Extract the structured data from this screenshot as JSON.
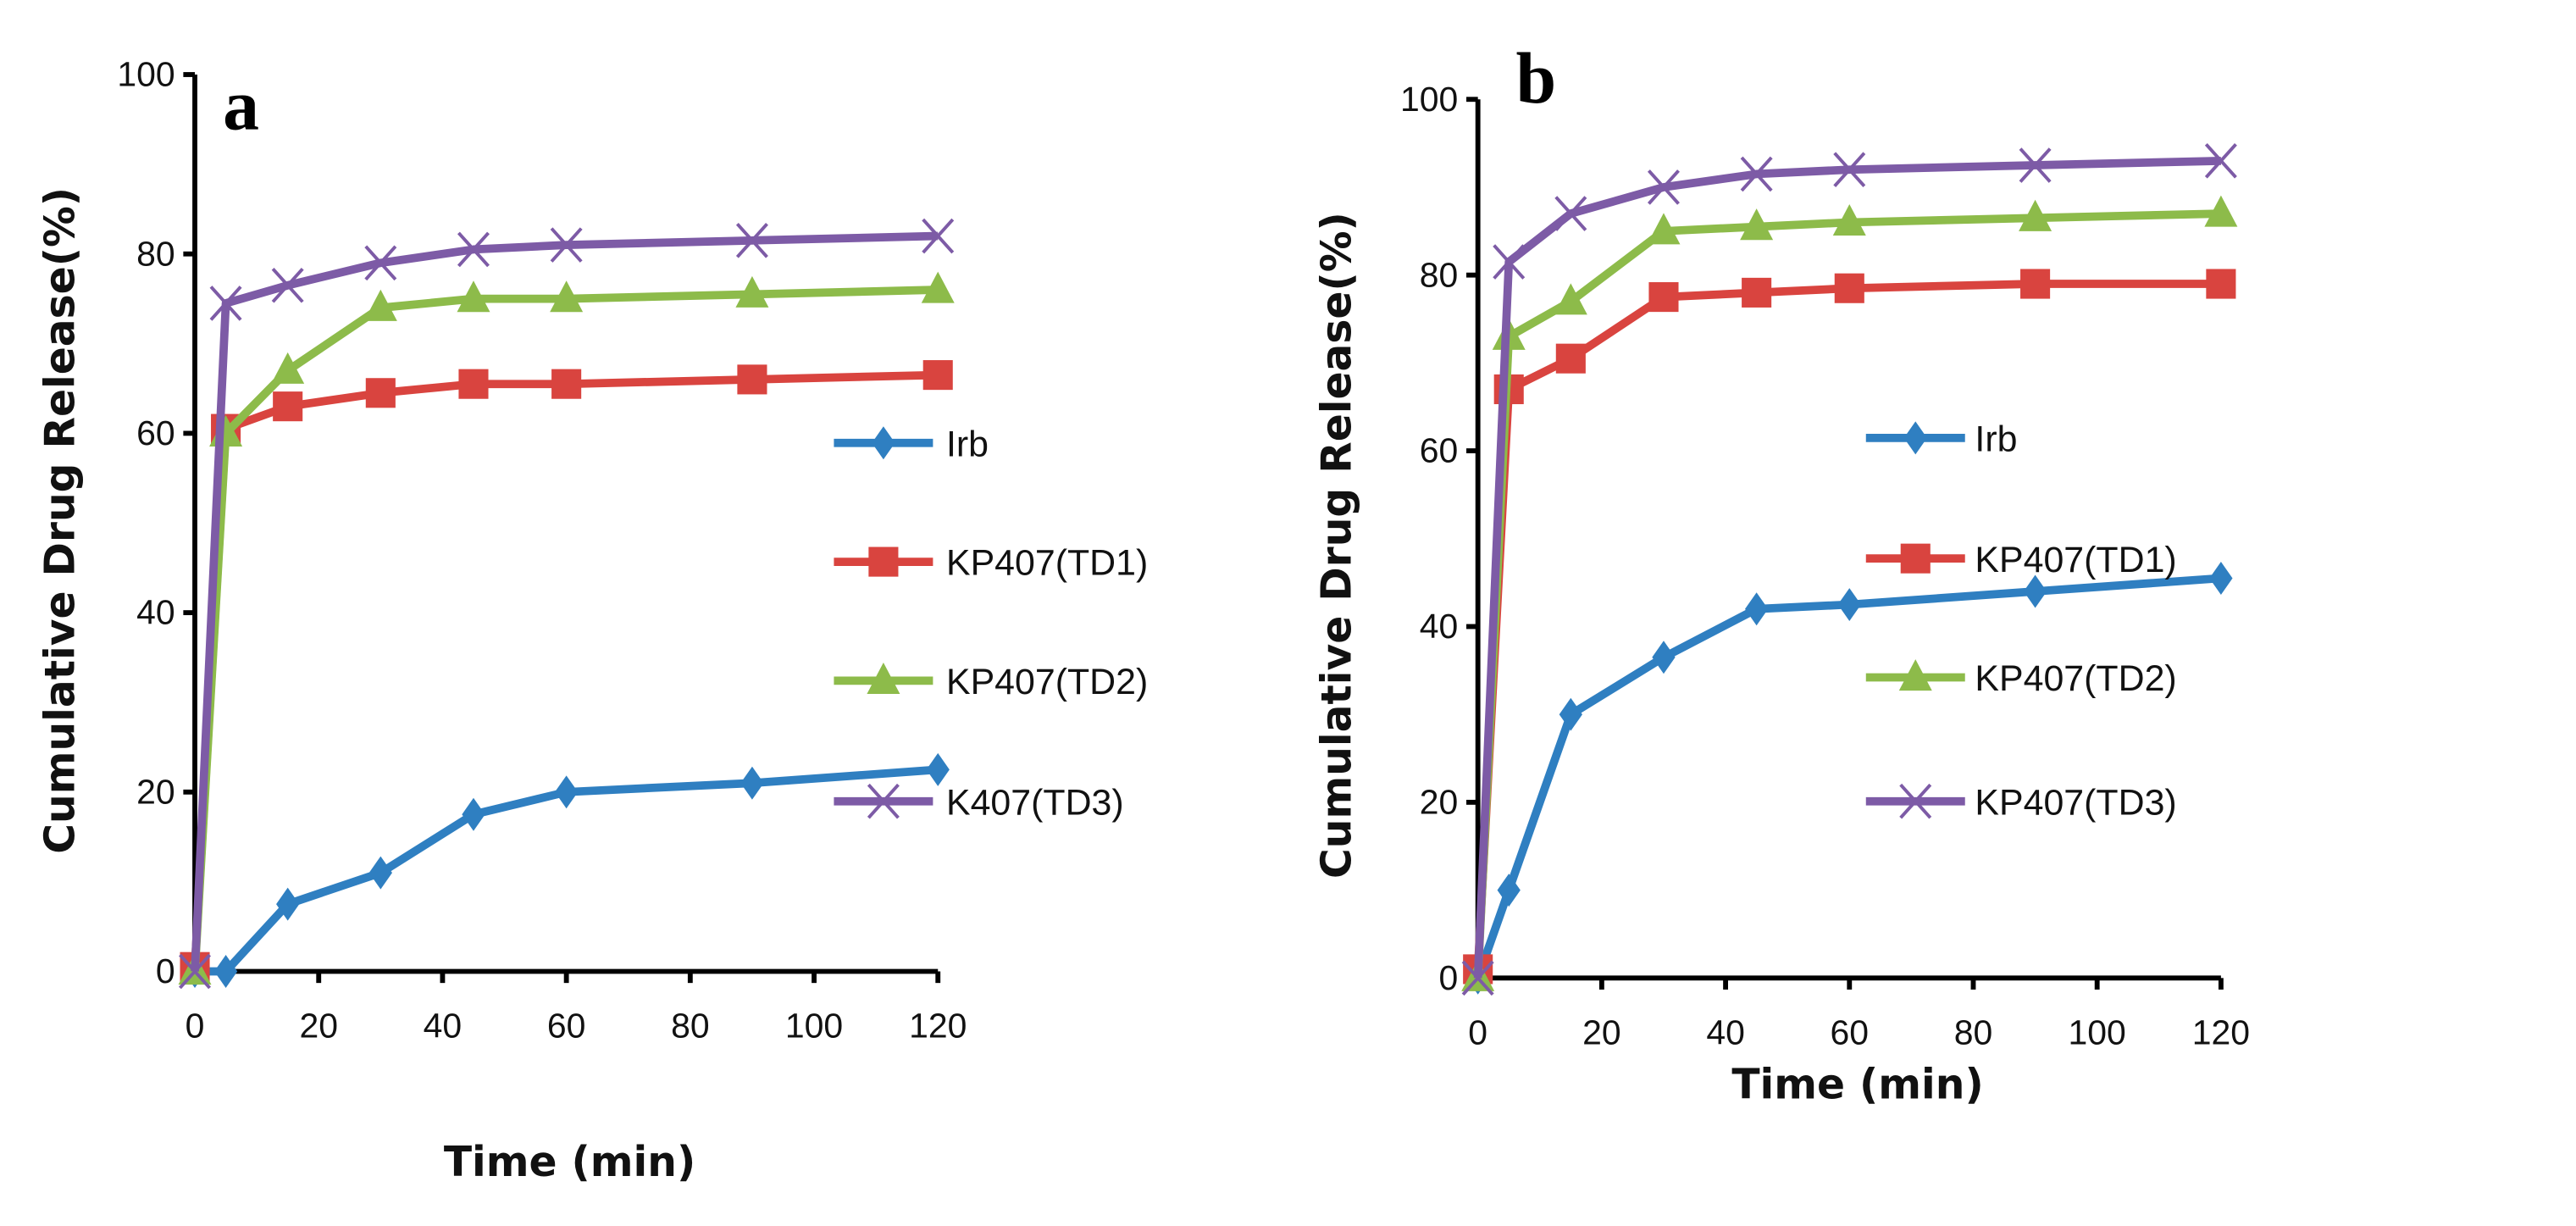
{
  "chart_data": [
    {
      "type": "line",
      "panel_label": "a",
      "xlabel": "Time (min)",
      "ylabel": "Cumulative Drug Release(%)",
      "x": [
        0,
        5,
        15,
        30,
        45,
        60,
        90,
        120
      ],
      "xlim": [
        0,
        120
      ],
      "ylim": [
        0,
        100
      ],
      "xticks": [
        0,
        20,
        40,
        60,
        80,
        100,
        120
      ],
      "yticks": [
        0,
        20,
        40,
        60,
        80,
        100
      ],
      "grid": false,
      "legend_position": "right",
      "series": [
        {
          "name": "Irb",
          "color": "#2f7fc1",
          "marker": "diamond",
          "values": [
            0,
            0,
            7.5,
            11,
            17.5,
            20,
            21,
            22.5
          ]
        },
        {
          "name": "KP407(TD1)",
          "color": "#d9443f",
          "marker": "square",
          "values": [
            0.5,
            60.5,
            63,
            64.5,
            65.5,
            65.5,
            66,
            66.5
          ]
        },
        {
          "name": "KP407(TD2)",
          "color": "#8dbb4a",
          "marker": "triangle",
          "values": [
            0,
            60,
            67,
            74,
            75,
            75,
            75.5,
            76
          ]
        },
        {
          "name": "K407(TD3)",
          "color": "#7d5ba6",
          "marker": "x",
          "values": [
            0,
            74.5,
            76.5,
            79,
            80.5,
            81,
            81.5,
            82
          ]
        }
      ]
    },
    {
      "type": "line",
      "panel_label": "b",
      "xlabel": "Time (min)",
      "ylabel": "Cumulative Drug Release(%)",
      "x": [
        0,
        5,
        15,
        30,
        45,
        60,
        90,
        120
      ],
      "xlim": [
        0,
        120
      ],
      "ylim": [
        0,
        100
      ],
      "xticks": [
        0,
        20,
        40,
        60,
        80,
        100,
        120
      ],
      "yticks": [
        0,
        20,
        40,
        60,
        80,
        100
      ],
      "grid": false,
      "legend_position": "right",
      "series": [
        {
          "name": "Irb",
          "color": "#2f7fc1",
          "marker": "diamond",
          "values": [
            0,
            10,
            30,
            36.5,
            42,
            42.5,
            44,
            45.5
          ]
        },
        {
          "name": "KP407(TD1)",
          "color": "#d9443f",
          "marker": "square",
          "values": [
            1,
            67,
            70.5,
            77.5,
            78,
            78.5,
            79,
            79
          ]
        },
        {
          "name": "KP407(TD2)",
          "color": "#8dbb4a",
          "marker": "triangle",
          "values": [
            0,
            73,
            77,
            85,
            85.5,
            86,
            86.5,
            87
          ]
        },
        {
          "name": "KP407(TD3)",
          "color": "#7d5ba6",
          "marker": "x",
          "values": [
            0,
            81.5,
            87,
            90,
            91.5,
            92,
            92.5,
            93
          ]
        }
      ]
    }
  ]
}
